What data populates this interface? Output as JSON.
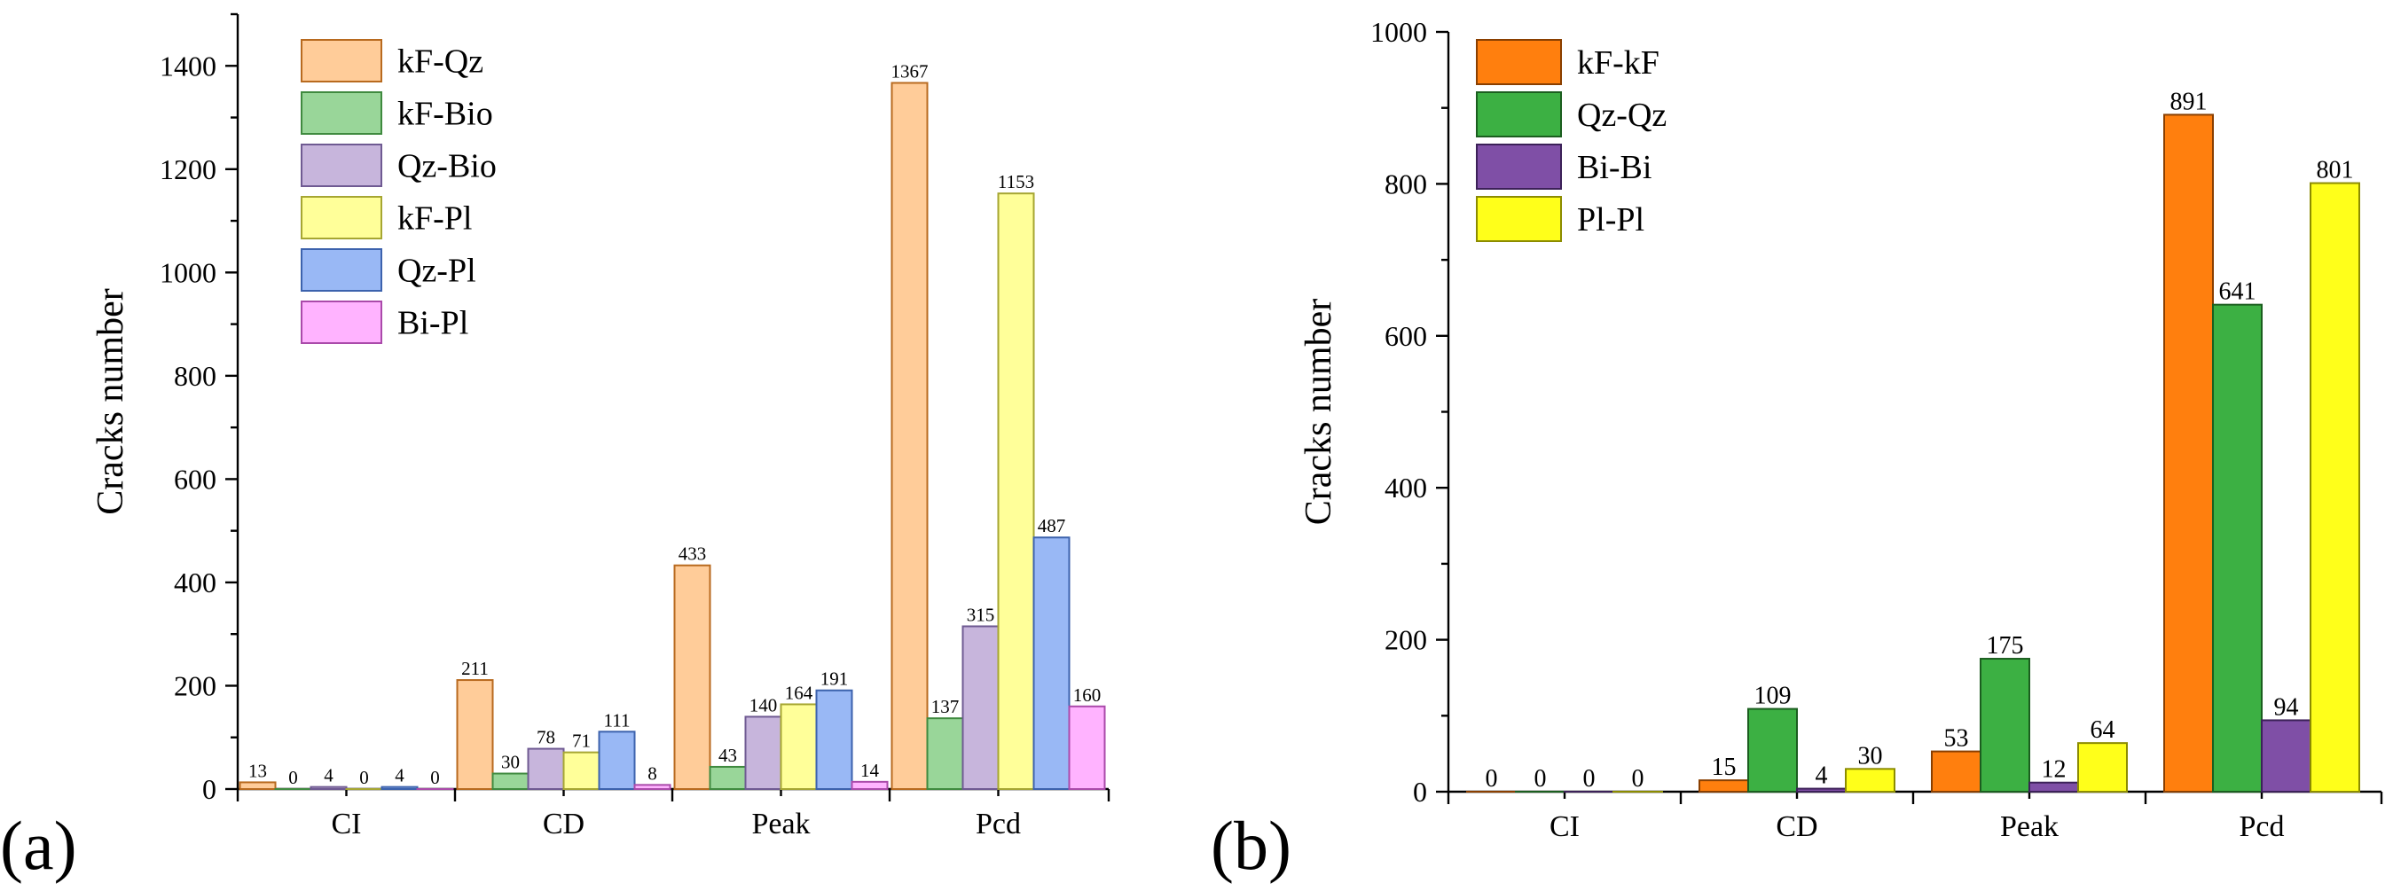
{
  "chart_data": [
    {
      "type": "bar",
      "panel_label": "(a)",
      "title": "",
      "xlabel": "",
      "ylabel": "Cracks number",
      "ylim": [
        0,
        1500
      ],
      "yticks": [
        0,
        200,
        400,
        600,
        800,
        1000,
        1200,
        1400
      ],
      "categories": [
        "CI",
        "CD",
        "Peak",
        "Pcd"
      ],
      "legend_position": "top-left",
      "series": [
        {
          "name": "kF-Qz",
          "fill": "#ffcc99",
          "stroke": "#b86a1f",
          "values": [
            13,
            211,
            433,
            1367
          ]
        },
        {
          "name": "kF-Bio",
          "fill": "#99d699",
          "stroke": "#3f8a3f",
          "values": [
            0,
            30,
            43,
            137
          ]
        },
        {
          "name": "Qz-Bio",
          "fill": "#c7b5dc",
          "stroke": "#6f5a92",
          "values": [
            4,
            78,
            140,
            315
          ]
        },
        {
          "name": "kF-Pl",
          "fill": "#ffff99",
          "stroke": "#a6a632",
          "values": [
            0,
            71,
            164,
            1153
          ]
        },
        {
          "name": "Qz-Pl",
          "fill": "#99b8f5",
          "stroke": "#3c62ad",
          "values": [
            4,
            111,
            191,
            487
          ]
        },
        {
          "name": "Bi-Pl",
          "fill": "#ffb3ff",
          "stroke": "#aa4aaa",
          "values": [
            0,
            8,
            14,
            160
          ]
        }
      ]
    },
    {
      "type": "bar",
      "panel_label": "(b)",
      "title": "",
      "xlabel": "",
      "ylabel": "Cracks number",
      "ylim": [
        0,
        1000
      ],
      "yticks": [
        0,
        200,
        400,
        600,
        800,
        1000
      ],
      "categories": [
        "CI",
        "CD",
        "Peak",
        "Pcd"
      ],
      "legend_position": "top-left",
      "series": [
        {
          "name": "kF-kF",
          "fill": "#ff7f0e",
          "stroke": "#8a3f00",
          "values": [
            0,
            15,
            53,
            891
          ]
        },
        {
          "name": "Qz-Qz",
          "fill": "#3cb043",
          "stroke": "#1b5e1f",
          "values": [
            0,
            109,
            175,
            641
          ]
        },
        {
          "name": "Bi-Bi",
          "fill": "#7f4fa6",
          "stroke": "#3c2158",
          "values": [
            0,
            4,
            12,
            94
          ]
        },
        {
          "name": "Pl-Pl",
          "fill": "#ffff1a",
          "stroke": "#8c8c00",
          "values": [
            0,
            30,
            64,
            801
          ]
        }
      ]
    }
  ]
}
